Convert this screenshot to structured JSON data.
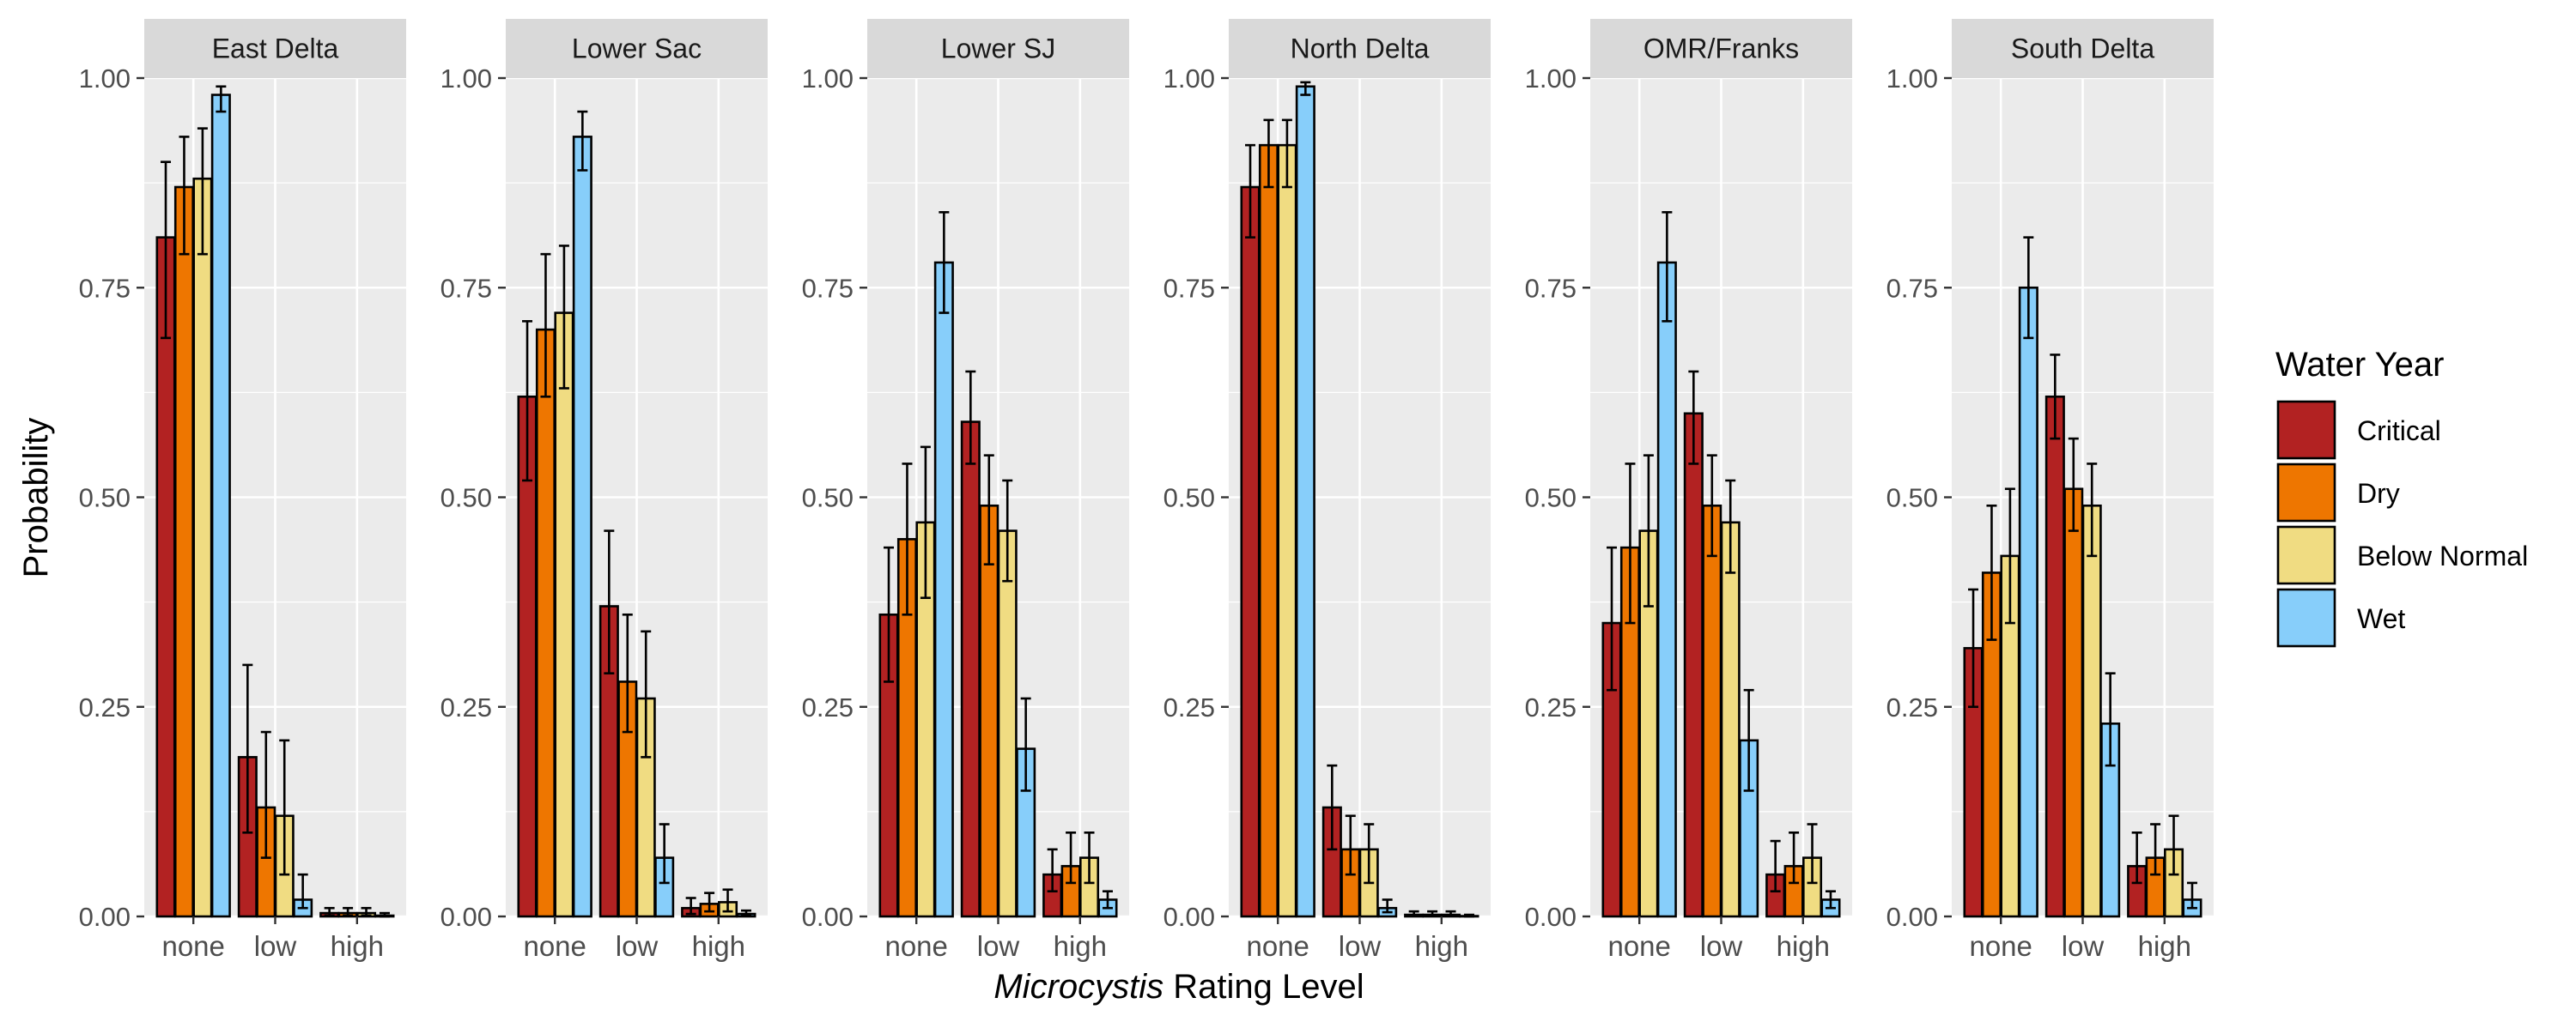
{
  "chart_data": {
    "type": "bar",
    "facets": [
      "East Delta",
      "Lower Sac",
      "Lower SJ",
      "North Delta",
      "OMR/Franks",
      "South Delta"
    ],
    "categories": [
      "none",
      "low",
      "high"
    ],
    "xlabel_italic": "Microcystis",
    "xlabel_rest": " Rating Level",
    "ylabel": "Probability",
    "ylim": [
      0,
      1
    ],
    "yticks": [
      0,
      0.25,
      0.5,
      0.75,
      1
    ],
    "ytick_labels": [
      "0.00",
      "0.25",
      "0.50",
      "0.75",
      "1.00"
    ],
    "legend_title": "Water Year",
    "legend_position": "right",
    "grid": true,
    "series": [
      {
        "name": "Critical",
        "color": "#B22222"
      },
      {
        "name": "Dry",
        "color": "#EE7600"
      },
      {
        "name": "Below Normal",
        "color": "#F0DC82"
      },
      {
        "name": "Wet",
        "color": "#87CEFA"
      }
    ],
    "panels": [
      {
        "facet": "East Delta",
        "values": [
          [
            0.81,
            0.19,
            0.004
          ],
          [
            0.87,
            0.13,
            0.004
          ],
          [
            0.88,
            0.12,
            0.004
          ],
          [
            0.98,
            0.02,
            0.001
          ]
        ],
        "lower": [
          [
            0.69,
            0.1,
            0.001
          ],
          [
            0.79,
            0.07,
            0.001
          ],
          [
            0.79,
            0.05,
            0.001
          ],
          [
            0.96,
            0.01,
            0.0
          ]
        ],
        "upper": [
          [
            0.9,
            0.3,
            0.01
          ],
          [
            0.93,
            0.22,
            0.01
          ],
          [
            0.94,
            0.21,
            0.01
          ],
          [
            0.99,
            0.05,
            0.004
          ]
        ]
      },
      {
        "facet": "Lower Sac",
        "values": [
          [
            0.62,
            0.37,
            0.01
          ],
          [
            0.7,
            0.28,
            0.015
          ],
          [
            0.72,
            0.26,
            0.017
          ],
          [
            0.93,
            0.07,
            0.003
          ]
        ],
        "lower": [
          [
            0.52,
            0.29,
            0.003
          ],
          [
            0.62,
            0.22,
            0.006
          ],
          [
            0.63,
            0.19,
            0.006
          ],
          [
            0.89,
            0.04,
            0.001
          ]
        ],
        "upper": [
          [
            0.71,
            0.46,
            0.022
          ],
          [
            0.79,
            0.36,
            0.028
          ],
          [
            0.8,
            0.34,
            0.032
          ],
          [
            0.96,
            0.11,
            0.007
          ]
        ]
      },
      {
        "facet": "Lower SJ",
        "values": [
          [
            0.36,
            0.59,
            0.05
          ],
          [
            0.45,
            0.49,
            0.06
          ],
          [
            0.47,
            0.46,
            0.07
          ],
          [
            0.78,
            0.2,
            0.02
          ]
        ],
        "lower": [
          [
            0.28,
            0.54,
            0.03
          ],
          [
            0.36,
            0.42,
            0.04
          ],
          [
            0.38,
            0.4,
            0.04
          ],
          [
            0.72,
            0.15,
            0.01
          ]
        ],
        "upper": [
          [
            0.44,
            0.65,
            0.08
          ],
          [
            0.54,
            0.55,
            0.1
          ],
          [
            0.56,
            0.52,
            0.1
          ],
          [
            0.84,
            0.26,
            0.03
          ]
        ]
      },
      {
        "facet": "North Delta",
        "values": [
          [
            0.87,
            0.13,
            0.002
          ],
          [
            0.92,
            0.08,
            0.002
          ],
          [
            0.92,
            0.08,
            0.002
          ],
          [
            0.99,
            0.01,
            0.0005
          ]
        ],
        "lower": [
          [
            0.81,
            0.08,
            0.0005
          ],
          [
            0.87,
            0.05,
            0.0005
          ],
          [
            0.87,
            0.04,
            0.0005
          ],
          [
            0.98,
            0.005,
            0.0
          ]
        ],
        "upper": [
          [
            0.92,
            0.18,
            0.006
          ],
          [
            0.95,
            0.12,
            0.006
          ],
          [
            0.95,
            0.11,
            0.006
          ],
          [
            0.995,
            0.02,
            0.002
          ]
        ]
      },
      {
        "facet": "OMR/Franks",
        "values": [
          [
            0.35,
            0.6,
            0.05
          ],
          [
            0.44,
            0.49,
            0.06
          ],
          [
            0.46,
            0.47,
            0.07
          ],
          [
            0.78,
            0.21,
            0.02
          ]
        ],
        "lower": [
          [
            0.27,
            0.54,
            0.03
          ],
          [
            0.35,
            0.43,
            0.04
          ],
          [
            0.37,
            0.41,
            0.04
          ],
          [
            0.71,
            0.15,
            0.01
          ]
        ],
        "upper": [
          [
            0.44,
            0.65,
            0.09
          ],
          [
            0.54,
            0.55,
            0.1
          ],
          [
            0.55,
            0.52,
            0.11
          ],
          [
            0.84,
            0.27,
            0.03
          ]
        ]
      },
      {
        "facet": "South Delta",
        "values": [
          [
            0.32,
            0.62,
            0.06
          ],
          [
            0.41,
            0.51,
            0.07
          ],
          [
            0.43,
            0.49,
            0.08
          ],
          [
            0.75,
            0.23,
            0.02
          ]
        ],
        "lower": [
          [
            0.25,
            0.57,
            0.04
          ],
          [
            0.33,
            0.46,
            0.05
          ],
          [
            0.35,
            0.43,
            0.05
          ],
          [
            0.69,
            0.18,
            0.01
          ]
        ],
        "upper": [
          [
            0.39,
            0.67,
            0.1
          ],
          [
            0.49,
            0.57,
            0.11
          ],
          [
            0.51,
            0.54,
            0.12
          ],
          [
            0.81,
            0.29,
            0.04
          ]
        ]
      }
    ]
  }
}
